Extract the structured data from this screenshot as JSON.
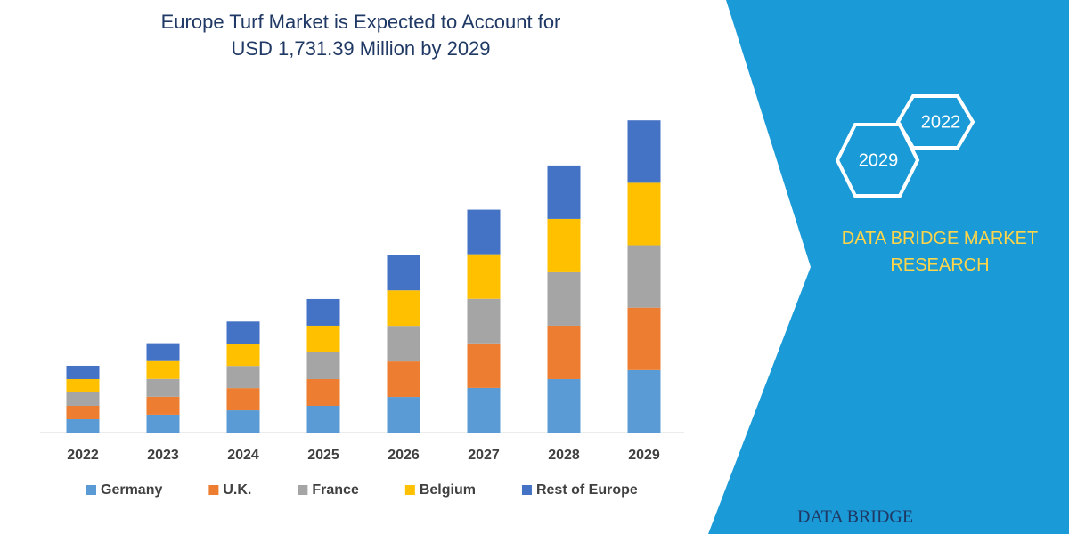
{
  "chart_data": {
    "type": "stacked_bar",
    "title": "Europe Turf Market is Expected to Account for USD 1,731.39 Million by 2029",
    "categories": [
      "2022",
      "2023",
      "2024",
      "2025",
      "2026",
      "2027",
      "2028",
      "2029"
    ],
    "series": [
      {
        "name": "Germany",
        "color": "#5b9bd5",
        "values": [
          74,
          99,
          123,
          148,
          197,
          247,
          296,
          346
        ]
      },
      {
        "name": "U.K.",
        "color": "#ed7d31",
        "values": [
          74,
          99,
          123,
          148,
          197,
          247,
          296,
          346
        ]
      },
      {
        "name": "France",
        "color": "#a5a5a5",
        "values": [
          74,
          99,
          123,
          148,
          197,
          247,
          296,
          346
        ]
      },
      {
        "name": "Belgium",
        "color": "#ffc000",
        "values": [
          74,
          99,
          123,
          148,
          197,
          247,
          296,
          346
        ]
      },
      {
        "name": "Rest of Europe",
        "color": "#4472c4",
        "values": [
          74,
          99,
          123,
          148,
          197,
          247,
          296,
          346
        ]
      }
    ],
    "ylim": [
      0,
      1800
    ],
    "legend": "bottom"
  },
  "panel": {
    "hexagons": [
      "2022",
      "2029"
    ],
    "brand": "DATA BRIDGE MARKET RESEARCH",
    "logo": "DATA BRIDGE"
  }
}
